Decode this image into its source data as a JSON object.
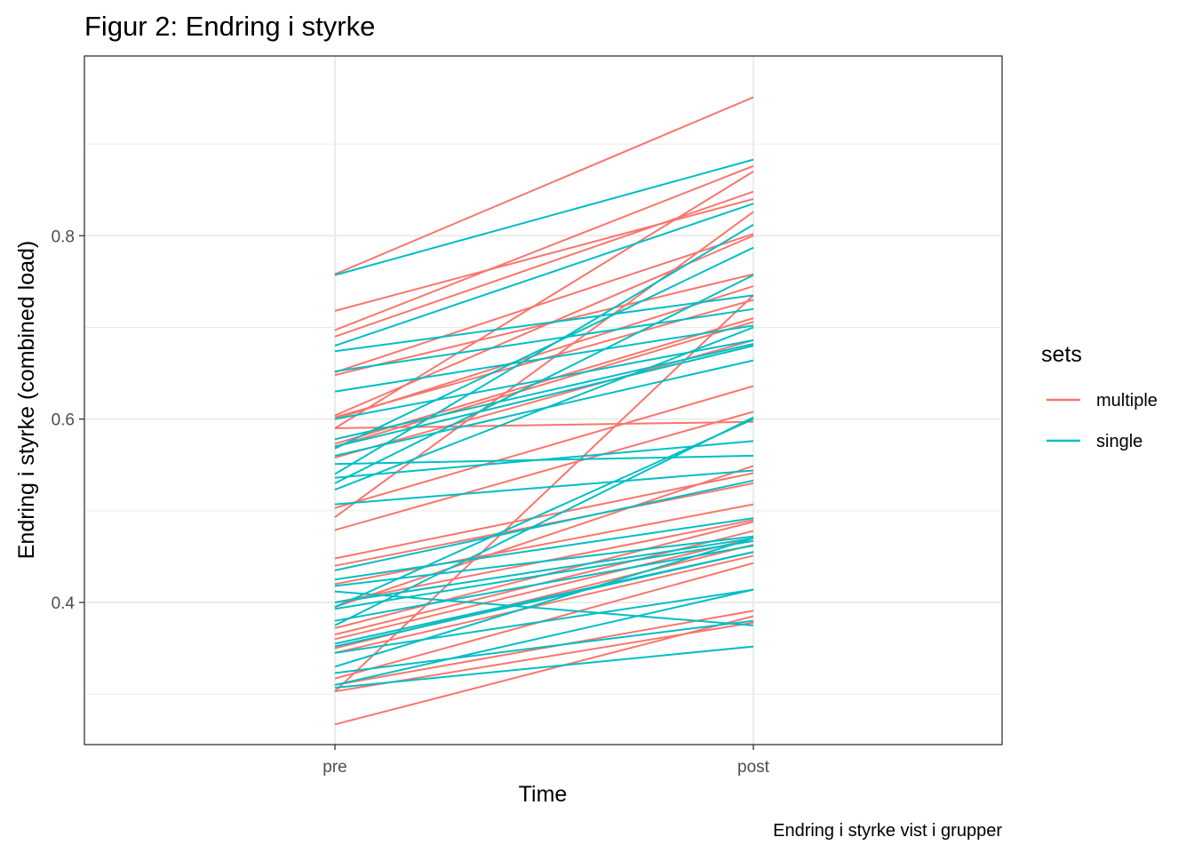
{
  "chart_data": {
    "type": "line",
    "title": "Figur 2: Endring i styrke",
    "xlabel": "Time",
    "ylabel": "Endring i styrke (combined load)",
    "caption": "Endring i styrke  vist i grupper",
    "categories": [
      "pre",
      "post"
    ],
    "ylim": [
      0.245,
      0.996
    ],
    "y_ticks": [
      0.4,
      0.6,
      0.8
    ],
    "y_tick_labels": [
      "0.4",
      "0.6",
      "0.8"
    ],
    "grid": true,
    "legend": {
      "title": "sets",
      "placement": "right",
      "entries": [
        {
          "name": "multiple",
          "color": "#F8766D"
        },
        {
          "name": "single",
          "color": "#00BFC4"
        }
      ]
    },
    "series": [
      {
        "name": "multiple",
        "color": "#F8766D",
        "lines": [
          [
            0.758,
            0.951
          ],
          [
            0.697,
            0.876
          ],
          [
            0.69,
            0.848
          ],
          [
            0.718,
            0.84
          ],
          [
            0.651,
            0.802
          ],
          [
            0.648,
            0.758
          ],
          [
            0.604,
            0.8
          ],
          [
            0.602,
            0.73
          ],
          [
            0.6,
            0.745
          ],
          [
            0.573,
            0.71
          ],
          [
            0.57,
            0.706
          ],
          [
            0.558,
            0.686
          ],
          [
            0.59,
            0.597
          ],
          [
            0.503,
            0.636
          ],
          [
            0.479,
            0.608
          ],
          [
            0.448,
            0.541
          ],
          [
            0.44,
            0.53
          ],
          [
            0.42,
            0.507
          ],
          [
            0.4,
            0.49
          ],
          [
            0.372,
            0.488
          ],
          [
            0.365,
            0.478
          ],
          [
            0.36,
            0.47
          ],
          [
            0.35,
            0.463
          ],
          [
            0.345,
            0.451
          ],
          [
            0.317,
            0.443
          ],
          [
            0.31,
            0.391
          ],
          [
            0.303,
            0.378
          ],
          [
            0.267,
            0.385
          ],
          [
            0.395,
            0.549
          ],
          [
            0.303,
            0.735
          ],
          [
            0.59,
            0.87
          ],
          [
            0.493,
            0.826
          ]
        ]
      },
      {
        "name": "single",
        "color": "#00BFC4",
        "lines": [
          [
            0.757,
            0.883
          ],
          [
            0.68,
            0.835
          ],
          [
            0.674,
            0.735
          ],
          [
            0.652,
            0.72
          ],
          [
            0.63,
            0.702
          ],
          [
            0.6,
            0.686
          ],
          [
            0.578,
            0.682
          ],
          [
            0.57,
            0.68
          ],
          [
            0.56,
            0.664
          ],
          [
            0.551,
            0.56
          ],
          [
            0.536,
            0.576
          ],
          [
            0.53,
            0.757
          ],
          [
            0.523,
            0.7
          ],
          [
            0.507,
            0.544
          ],
          [
            0.435,
            0.533
          ],
          [
            0.425,
            0.492
          ],
          [
            0.418,
            0.472
          ],
          [
            0.412,
            0.375
          ],
          [
            0.4,
            0.47
          ],
          [
            0.393,
            0.467
          ],
          [
            0.38,
            0.462
          ],
          [
            0.355,
            0.455
          ],
          [
            0.352,
            0.455
          ],
          [
            0.345,
            0.414
          ],
          [
            0.33,
            0.47
          ],
          [
            0.323,
            0.38
          ],
          [
            0.31,
            0.414
          ],
          [
            0.307,
            0.352
          ],
          [
            0.375,
            0.602
          ],
          [
            0.395,
            0.6
          ],
          [
            0.54,
            0.812
          ],
          [
            0.568,
            0.787
          ]
        ]
      }
    ]
  }
}
